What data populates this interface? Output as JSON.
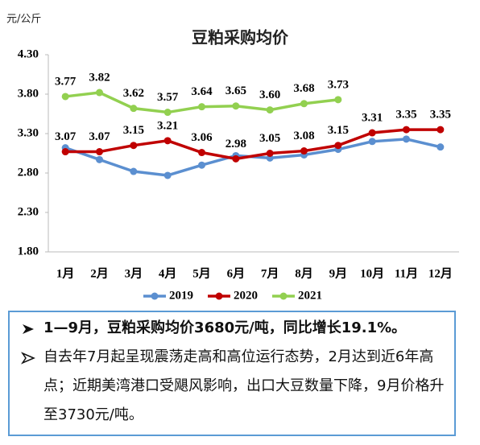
{
  "chart_data": {
    "type": "line",
    "title": "豆粕采购均价",
    "y_unit": "元/公斤",
    "categories": [
      "1月",
      "2月",
      "3月",
      "4月",
      "5月",
      "6月",
      "7月",
      "8月",
      "9月",
      "10月",
      "11月",
      "12月"
    ],
    "ylim": [
      1.8,
      4.3
    ],
    "yticks": [
      {
        "value": 1.8,
        "label": "1.80"
      },
      {
        "value": 2.3,
        "label": "2.30"
      },
      {
        "value": 2.8,
        "label": "2.80"
      },
      {
        "value": 3.3,
        "label": "3.30"
      },
      {
        "value": 3.8,
        "label": "3.80"
      },
      {
        "value": 4.3,
        "label": "4.30"
      }
    ],
    "legend": "bottom",
    "series": [
      {
        "name": "2019",
        "color": "#5b8fd0",
        "values": [
          3.12,
          2.97,
          2.82,
          2.77,
          2.9,
          3.02,
          2.99,
          3.03,
          3.1,
          3.2,
          3.23,
          3.13
        ]
      },
      {
        "name": "2020",
        "color": "#c00000",
        "values": [
          3.07,
          3.07,
          3.15,
          3.21,
          3.06,
          2.98,
          3.05,
          3.08,
          3.15,
          3.31,
          3.35,
          3.35
        ],
        "value_labels": [
          "3.07",
          "3.07",
          "3.15",
          "3.21",
          "3.06",
          "2.98",
          "3.05",
          "3.08",
          "3.15",
          "3.31",
          "3.35",
          "3.35"
        ]
      },
      {
        "name": "2021",
        "color": "#92d050",
        "values": [
          3.77,
          3.82,
          3.62,
          3.57,
          3.64,
          3.65,
          3.6,
          3.68,
          3.73,
          null,
          null,
          null
        ],
        "value_labels": [
          "3.77",
          "3.82",
          "3.62",
          "3.57",
          "3.64",
          "3.65",
          "3.60",
          "3.68",
          "3.73",
          null,
          null,
          null
        ]
      }
    ]
  },
  "notes": [
    "1—9月，豆粕采购均价3680元/吨，同比增长19.1%。",
    "自去年7月起呈现震荡走高和高位运行态势，2月达到近6年高点；近期美湾港口受飓风影响，出口大豆数量下降，9月价格升至3730元/吨。"
  ]
}
